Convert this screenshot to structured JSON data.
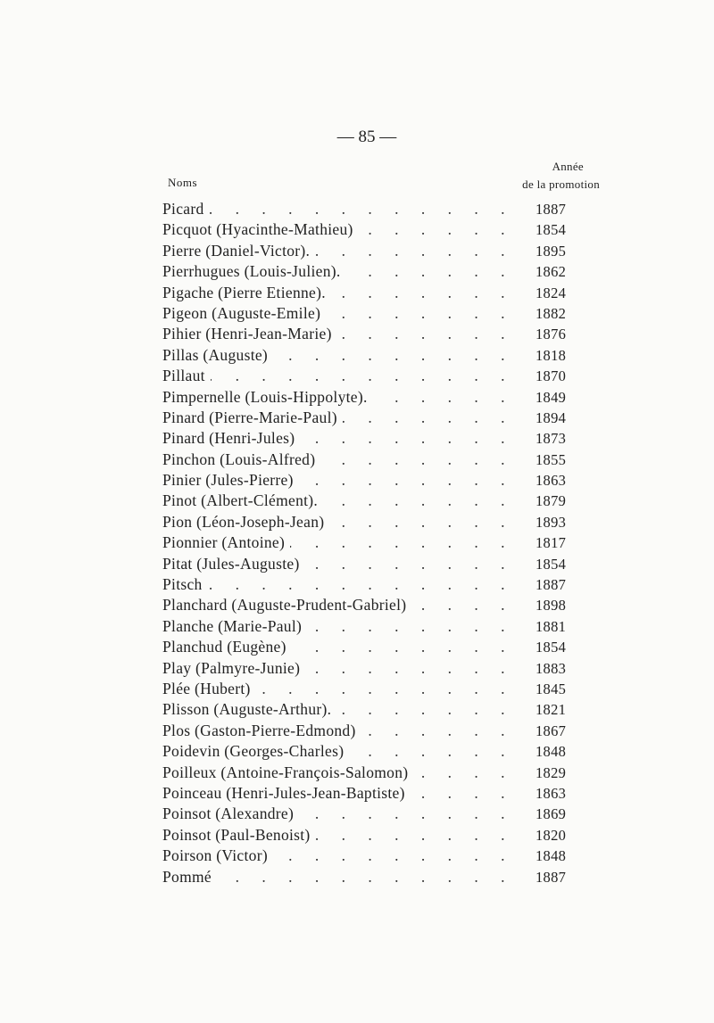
{
  "page_number": "— 85 —",
  "headers": {
    "names": "Noms",
    "year_line1": "Année",
    "year_line2": "de la promotion"
  },
  "entries": [
    {
      "name": "Picard",
      "year": "1887"
    },
    {
      "name": "Picquot (Hyacinthe-Mathieu)",
      "year": "1854"
    },
    {
      "name": "Pierre (Daniel-Victor).",
      "year": "1895"
    },
    {
      "name": "Pierrhugues (Louis-Julien).",
      "year": "1862"
    },
    {
      "name": "Pigache (Pierre Etienne).",
      "year": "1824"
    },
    {
      "name": "Pigeon (Auguste-Emile)",
      "year": "1882"
    },
    {
      "name": "Pihier (Henri-Jean-Marie)",
      "year": "1876"
    },
    {
      "name": "Pillas (Auguste)",
      "year": "1818"
    },
    {
      "name": "Pillaut",
      "year": "1870"
    },
    {
      "name": "Pimpernelle (Louis-Hippolyte).",
      "year": "1849"
    },
    {
      "name": "Pinard (Pierre-Marie-Paul)",
      "year": "1894"
    },
    {
      "name": "Pinard (Henri-Jules)",
      "year": "1873"
    },
    {
      "name": "Pinchon (Louis-Alfred)",
      "year": "1855"
    },
    {
      "name": "Pinier (Jules-Pierre)",
      "year": "1863"
    },
    {
      "name": "Pinot (Albert-Clément).",
      "year": "1879"
    },
    {
      "name": "Pion (Léon-Joseph-Jean)",
      "year": "1893"
    },
    {
      "name": "Pionnier (Antoine)",
      "year": "1817"
    },
    {
      "name": "Pitat (Jules-Auguste)",
      "year": "1854"
    },
    {
      "name": "Pitsch",
      "year": "1887"
    },
    {
      "name": "Planchard (Auguste-Prudent-Gabriel)",
      "year": "1898"
    },
    {
      "name": "Planche (Marie-Paul)",
      "year": "1881"
    },
    {
      "name": "Planchud (Eugène)",
      "year": "1854"
    },
    {
      "name": "Play (Palmyre-Junie)",
      "year": "1883"
    },
    {
      "name": "Plée (Hubert)",
      "year": "1845"
    },
    {
      "name": "Plisson (Auguste-Arthur).",
      "year": "1821"
    },
    {
      "name": "Plos (Gaston-Pierre-Edmond)",
      "year": "1867"
    },
    {
      "name": "Poidevin (Georges-Charles)",
      "year": "1848"
    },
    {
      "name": "Poilleux (Antoine-François-Salomon)",
      "year": "1829"
    },
    {
      "name": "Poinceau (Henri-Jules-Jean-Baptiste)",
      "year": "1863"
    },
    {
      "name": "Poinsot (Alexandre)",
      "year": "1869"
    },
    {
      "name": "Poinsot (Paul-Benoist)",
      "year": "1820"
    },
    {
      "name": "Poirson (Victor)",
      "year": "1848"
    },
    {
      "name": "Pommé",
      "year": "1887"
    }
  ]
}
